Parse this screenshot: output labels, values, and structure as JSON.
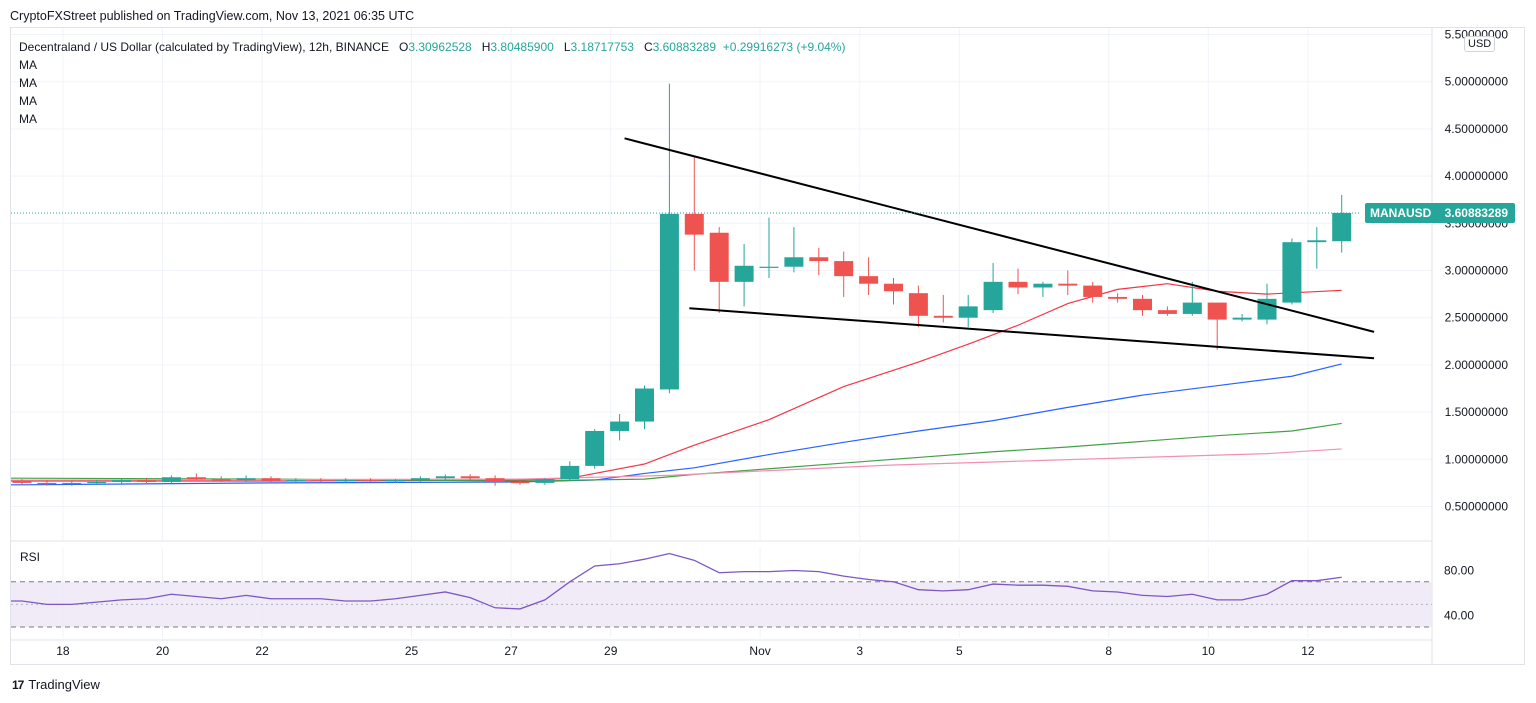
{
  "header": {
    "publisher_line": "CryptoFXStreet published on TradingView.com, Nov 13, 2021 06:35 UTC"
  },
  "legend": {
    "symbol_desc": "Decentraland / US Dollar (calculated by TradingView), 12h, BINANCE",
    "o_label": "O",
    "o_value": "3.30962528",
    "h_label": "H",
    "h_value": "3.80485900",
    "l_label": "L",
    "l_value": "3.18717753",
    "c_label": "C",
    "c_value": "3.60883289",
    "change": "+0.29916273 (+9.04%)",
    "ma_labels": [
      "MA",
      "MA",
      "MA",
      "MA"
    ]
  },
  "currency_badge": "USD",
  "footer": {
    "brand": "TradingView",
    "logo_glyph": "17"
  },
  "colors": {
    "up": "#26a69a",
    "down": "#ef5350",
    "ma_fast": "#f23645",
    "ma_mid": "#2962ff",
    "ma_slow": "#43a047",
    "ma_slowest": "#f48fb1",
    "rsi": "#7e57c2",
    "rsi_band": "#ede7f6",
    "trend": "#000000"
  },
  "chart_data": {
    "type": "candlestick",
    "title": "Decentraland / US Dollar (calculated by TradingView), 12h, BINANCE",
    "symbol": "MANAUSD",
    "last_price_label": "3.60883289",
    "ylim": [
      0.1,
      5.5
    ],
    "y_ticks": [
      "5.50000000",
      "5.00000000",
      "4.50000000",
      "4.00000000",
      "3.50000000",
      "3.00000000",
      "2.50000000",
      "2.00000000",
      "1.50000000",
      "1.00000000",
      "0.50000000"
    ],
    "y_tick_values": [
      5.5,
      5.0,
      4.5,
      4.0,
      3.5,
      3.0,
      2.5,
      2.0,
      1.5,
      1.0,
      0.5
    ],
    "x_tick_labels": [
      {
        "label": "18",
        "index": 1
      },
      {
        "label": "20",
        "index": 5
      },
      {
        "label": "22",
        "index": 9
      },
      {
        "label": "25",
        "index": 15
      },
      {
        "label": "27",
        "index": 19
      },
      {
        "label": "29",
        "index": 23
      },
      {
        "label": "Nov",
        "index": 29
      },
      {
        "label": "3",
        "index": 33
      },
      {
        "label": "5",
        "index": 37
      },
      {
        "label": "8",
        "index": 43
      },
      {
        "label": "10",
        "index": 47
      },
      {
        "label": "12",
        "index": 51
      }
    ],
    "candles": [
      [
        0.77,
        0.79,
        0.73,
        0.75
      ],
      [
        0.75,
        0.78,
        0.72,
        0.74
      ],
      [
        0.74,
        0.77,
        0.72,
        0.75
      ],
      [
        0.75,
        0.78,
        0.73,
        0.76
      ],
      [
        0.76,
        0.8,
        0.74,
        0.78
      ],
      [
        0.78,
        0.8,
        0.75,
        0.76
      ],
      [
        0.76,
        0.83,
        0.75,
        0.81
      ],
      [
        0.81,
        0.85,
        0.78,
        0.79
      ],
      [
        0.79,
        0.82,
        0.76,
        0.78
      ],
      [
        0.78,
        0.83,
        0.76,
        0.8
      ],
      [
        0.8,
        0.82,
        0.76,
        0.77
      ],
      [
        0.77,
        0.8,
        0.75,
        0.78
      ],
      [
        0.78,
        0.8,
        0.76,
        0.77
      ],
      [
        0.77,
        0.8,
        0.75,
        0.78
      ],
      [
        0.78,
        0.8,
        0.76,
        0.77
      ],
      [
        0.77,
        0.79,
        0.75,
        0.78
      ],
      [
        0.78,
        0.82,
        0.76,
        0.8
      ],
      [
        0.8,
        0.84,
        0.77,
        0.82
      ],
      [
        0.82,
        0.84,
        0.78,
        0.8
      ],
      [
        0.8,
        0.83,
        0.72,
        0.76
      ],
      [
        0.76,
        0.79,
        0.73,
        0.75
      ],
      [
        0.75,
        0.8,
        0.73,
        0.79
      ],
      [
        0.79,
        0.98,
        0.78,
        0.93
      ],
      [
        0.93,
        1.32,
        0.9,
        1.3
      ],
      [
        1.3,
        1.48,
        1.2,
        1.4
      ],
      [
        1.4,
        1.78,
        1.32,
        1.75
      ],
      [
        1.74,
        4.98,
        1.7,
        3.6
      ],
      [
        3.6,
        4.2,
        3.0,
        3.38
      ],
      [
        3.4,
        3.46,
        2.55,
        2.88
      ],
      [
        2.88,
        3.28,
        2.62,
        3.05
      ],
      [
        3.04,
        3.56,
        2.92,
        3.04
      ],
      [
        3.04,
        3.46,
        2.98,
        3.14
      ],
      [
        3.14,
        3.24,
        2.95,
        3.1
      ],
      [
        3.1,
        3.2,
        2.72,
        2.94
      ],
      [
        2.94,
        3.14,
        2.74,
        2.86
      ],
      [
        2.86,
        2.92,
        2.64,
        2.78
      ],
      [
        2.76,
        2.84,
        2.4,
        2.52
      ],
      [
        2.52,
        2.74,
        2.45,
        2.5
      ],
      [
        2.5,
        2.74,
        2.4,
        2.62
      ],
      [
        2.58,
        3.08,
        2.55,
        2.88
      ],
      [
        2.88,
        3.02,
        2.75,
        2.82
      ],
      [
        2.82,
        2.88,
        2.72,
        2.86
      ],
      [
        2.86,
        3.0,
        2.74,
        2.84
      ],
      [
        2.84,
        2.88,
        2.66,
        2.72
      ],
      [
        2.72,
        2.76,
        2.66,
        2.7
      ],
      [
        2.7,
        2.74,
        2.52,
        2.58
      ],
      [
        2.58,
        2.62,
        2.52,
        2.54
      ],
      [
        2.54,
        2.88,
        2.52,
        2.66
      ],
      [
        2.66,
        2.66,
        2.16,
        2.48
      ],
      [
        2.48,
        2.54,
        2.46,
        2.5
      ],
      [
        2.48,
        2.86,
        2.43,
        2.7
      ],
      [
        2.66,
        3.34,
        2.64,
        3.3
      ],
      [
        3.3,
        3.46,
        3.02,
        3.32
      ],
      [
        3.31,
        3.8,
        3.19,
        3.61
      ]
    ],
    "ma_series": [
      {
        "name": "MA fast",
        "color_key": "ma_fast",
        "points": [
          [
            0,
            0.77
          ],
          [
            10,
            0.77
          ],
          [
            20,
            0.78
          ],
          [
            22,
            0.8
          ],
          [
            25,
            0.95
          ],
          [
            26,
            1.05
          ],
          [
            27,
            1.15
          ],
          [
            30,
            1.42
          ],
          [
            33,
            1.77
          ],
          [
            36,
            2.03
          ],
          [
            38,
            2.22
          ],
          [
            40,
            2.42
          ],
          [
            42,
            2.65
          ],
          [
            44,
            2.8
          ],
          [
            46,
            2.86
          ],
          [
            48,
            2.78
          ],
          [
            50,
            2.75
          ],
          [
            53,
            2.79
          ]
        ]
      },
      {
        "name": "MA mid",
        "color_key": "ma_mid",
        "points": [
          [
            0,
            0.73
          ],
          [
            10,
            0.75
          ],
          [
            20,
            0.76
          ],
          [
            23,
            0.78
          ],
          [
            25,
            0.85
          ],
          [
            27,
            0.91
          ],
          [
            30,
            1.05
          ],
          [
            33,
            1.18
          ],
          [
            36,
            1.3
          ],
          [
            39,
            1.41
          ],
          [
            42,
            1.55
          ],
          [
            45,
            1.68
          ],
          [
            48,
            1.78
          ],
          [
            51,
            1.88
          ],
          [
            53,
            2.01
          ]
        ]
      },
      {
        "name": "MA slow",
        "color_key": "ma_slow",
        "points": [
          [
            0,
            0.8
          ],
          [
            10,
            0.79
          ],
          [
            20,
            0.77
          ],
          [
            25,
            0.79
          ],
          [
            27,
            0.84
          ],
          [
            30,
            0.9
          ],
          [
            33,
            0.96
          ],
          [
            36,
            1.02
          ],
          [
            39,
            1.08
          ],
          [
            42,
            1.13
          ],
          [
            45,
            1.19
          ],
          [
            48,
            1.25
          ],
          [
            51,
            1.3
          ],
          [
            53,
            1.38
          ]
        ]
      },
      {
        "name": "MA slowest",
        "color_key": "ma_slowest",
        "points": [
          [
            0,
            0.78
          ],
          [
            20,
            0.79
          ],
          [
            26,
            0.83
          ],
          [
            30,
            0.88
          ],
          [
            35,
            0.94
          ],
          [
            40,
            0.98
          ],
          [
            45,
            1.02
          ],
          [
            50,
            1.06
          ],
          [
            53,
            1.11
          ]
        ]
      }
    ],
    "trendlines": [
      {
        "name": "upper trendline",
        "from": [
          24.2,
          4.4
        ],
        "to": [
          54.3,
          2.35
        ]
      },
      {
        "name": "lower trendline",
        "from": [
          26.8,
          2.6
        ],
        "to": [
          54.3,
          2.07
        ]
      }
    ],
    "rsi": {
      "label": "RSI",
      "ylim": [
        28,
        100
      ],
      "y_tick_labels": [
        "80.00",
        "40.00"
      ],
      "y_tick_values": [
        80,
        40
      ],
      "band_lines": [
        70,
        30
      ],
      "mid_line": 50,
      "values": [
        [
          0,
          53
        ],
        [
          1,
          50
        ],
        [
          2,
          50
        ],
        [
          3,
          52
        ],
        [
          4,
          54
        ],
        [
          5,
          55
        ],
        [
          6,
          59
        ],
        [
          7,
          57
        ],
        [
          8,
          55
        ],
        [
          9,
          58
        ],
        [
          10,
          55
        ],
        [
          11,
          55
        ],
        [
          12,
          55
        ],
        [
          13,
          53
        ],
        [
          14,
          53
        ],
        [
          15,
          55
        ],
        [
          16,
          58
        ],
        [
          17,
          61
        ],
        [
          18,
          56
        ],
        [
          19,
          47
        ],
        [
          20,
          46
        ],
        [
          21,
          54
        ],
        [
          22,
          70
        ],
        [
          23,
          84
        ],
        [
          24,
          86
        ],
        [
          25,
          90
        ],
        [
          26,
          95
        ],
        [
          27,
          89
        ],
        [
          28,
          78
        ],
        [
          29,
          79
        ],
        [
          30,
          79
        ],
        [
          31,
          80
        ],
        [
          32,
          79
        ],
        [
          33,
          75
        ],
        [
          34,
          72
        ],
        [
          35,
          70
        ],
        [
          36,
          63
        ],
        [
          37,
          62
        ],
        [
          38,
          63
        ],
        [
          39,
          68
        ],
        [
          40,
          67
        ],
        [
          41,
          67
        ],
        [
          42,
          66
        ],
        [
          43,
          62
        ],
        [
          44,
          61
        ],
        [
          45,
          58
        ],
        [
          46,
          57
        ],
        [
          47,
          59
        ],
        [
          48,
          54
        ],
        [
          49,
          54
        ],
        [
          50,
          59
        ],
        [
          51,
          71
        ],
        [
          52,
          71
        ],
        [
          53,
          74
        ]
      ]
    }
  }
}
